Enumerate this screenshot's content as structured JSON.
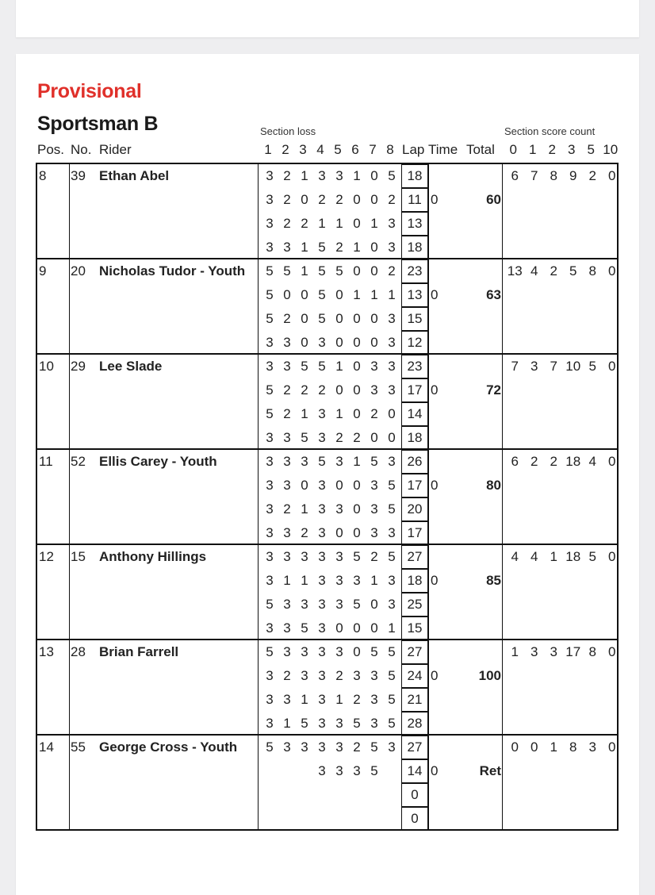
{
  "status": "Provisional",
  "class_name": "Sportsman B",
  "headers": {
    "section_loss": "Section loss",
    "section_score_count": "Section score count",
    "pos": "Pos.",
    "no": "No.",
    "rider": "Rider",
    "sections": [
      "1",
      "2",
      "3",
      "4",
      "5",
      "6",
      "7",
      "8"
    ],
    "lap": "Lap",
    "time": "Time",
    "total": "Total",
    "counts": [
      "0",
      "1",
      "2",
      "3",
      "5",
      "10"
    ]
  },
  "riders": [
    {
      "pos": "8",
      "no": "39",
      "name": "Ethan Abel",
      "time": "0",
      "total": "60",
      "laps": [
        {
          "sections": [
            "3",
            "2",
            "1",
            "3",
            "3",
            "1",
            "0",
            "5"
          ],
          "lap": "18"
        },
        {
          "sections": [
            "3",
            "2",
            "0",
            "2",
            "2",
            "0",
            "0",
            "2"
          ],
          "lap": "11"
        },
        {
          "sections": [
            "3",
            "2",
            "2",
            "1",
            "1",
            "0",
            "1",
            "3"
          ],
          "lap": "13"
        },
        {
          "sections": [
            "3",
            "3",
            "1",
            "5",
            "2",
            "1",
            "0",
            "3"
          ],
          "lap": "18"
        }
      ],
      "counts": [
        "6",
        "7",
        "8",
        "9",
        "2",
        "0"
      ]
    },
    {
      "pos": "9",
      "no": "20",
      "name": "Nicholas Tudor - Youth",
      "time": "0",
      "total": "63",
      "laps": [
        {
          "sections": [
            "5",
            "5",
            "1",
            "5",
            "5",
            "0",
            "0",
            "2"
          ],
          "lap": "23"
        },
        {
          "sections": [
            "5",
            "0",
            "0",
            "5",
            "0",
            "1",
            "1",
            "1"
          ],
          "lap": "13"
        },
        {
          "sections": [
            "5",
            "2",
            "0",
            "5",
            "0",
            "0",
            "0",
            "3"
          ],
          "lap": "15"
        },
        {
          "sections": [
            "3",
            "3",
            "0",
            "3",
            "0",
            "0",
            "0",
            "3"
          ],
          "lap": "12"
        }
      ],
      "counts": [
        "13",
        "4",
        "2",
        "5",
        "8",
        "0"
      ]
    },
    {
      "pos": "10",
      "no": "29",
      "name": "Lee Slade",
      "time": "0",
      "total": "72",
      "laps": [
        {
          "sections": [
            "3",
            "3",
            "5",
            "5",
            "1",
            "0",
            "3",
            "3"
          ],
          "lap": "23"
        },
        {
          "sections": [
            "5",
            "2",
            "2",
            "2",
            "0",
            "0",
            "3",
            "3"
          ],
          "lap": "17"
        },
        {
          "sections": [
            "5",
            "2",
            "1",
            "3",
            "1",
            "0",
            "2",
            "0"
          ],
          "lap": "14"
        },
        {
          "sections": [
            "3",
            "3",
            "5",
            "3",
            "2",
            "2",
            "0",
            "0"
          ],
          "lap": "18"
        }
      ],
      "counts": [
        "7",
        "3",
        "7",
        "10",
        "5",
        "0"
      ]
    },
    {
      "pos": "11",
      "no": "52",
      "name": "Ellis Carey - Youth",
      "time": "0",
      "total": "80",
      "laps": [
        {
          "sections": [
            "3",
            "3",
            "3",
            "5",
            "3",
            "1",
            "5",
            "3"
          ],
          "lap": "26"
        },
        {
          "sections": [
            "3",
            "3",
            "0",
            "3",
            "0",
            "0",
            "3",
            "5"
          ],
          "lap": "17"
        },
        {
          "sections": [
            "3",
            "2",
            "1",
            "3",
            "3",
            "0",
            "3",
            "5"
          ],
          "lap": "20"
        },
        {
          "sections": [
            "3",
            "3",
            "2",
            "3",
            "0",
            "0",
            "3",
            "3"
          ],
          "lap": "17"
        }
      ],
      "counts": [
        "6",
        "2",
        "2",
        "18",
        "4",
        "0"
      ]
    },
    {
      "pos": "12",
      "no": "15",
      "name": "Anthony Hillings",
      "time": "0",
      "total": "85",
      "laps": [
        {
          "sections": [
            "3",
            "3",
            "3",
            "3",
            "3",
            "5",
            "2",
            "5"
          ],
          "lap": "27"
        },
        {
          "sections": [
            "3",
            "1",
            "1",
            "3",
            "3",
            "3",
            "1",
            "3"
          ],
          "lap": "18"
        },
        {
          "sections": [
            "5",
            "3",
            "3",
            "3",
            "3",
            "5",
            "0",
            "3"
          ],
          "lap": "25"
        },
        {
          "sections": [
            "3",
            "3",
            "5",
            "3",
            "0",
            "0",
            "0",
            "1"
          ],
          "lap": "15"
        }
      ],
      "counts": [
        "4",
        "4",
        "1",
        "18",
        "5",
        "0"
      ]
    },
    {
      "pos": "13",
      "no": "28",
      "name": "Brian Farrell",
      "time": "0",
      "total": "100",
      "laps": [
        {
          "sections": [
            "5",
            "3",
            "3",
            "3",
            "3",
            "0",
            "5",
            "5"
          ],
          "lap": "27"
        },
        {
          "sections": [
            "3",
            "2",
            "3",
            "3",
            "2",
            "3",
            "3",
            "5"
          ],
          "lap": "24"
        },
        {
          "sections": [
            "3",
            "3",
            "1",
            "3",
            "1",
            "2",
            "3",
            "5"
          ],
          "lap": "21"
        },
        {
          "sections": [
            "3",
            "1",
            "5",
            "3",
            "3",
            "5",
            "3",
            "5"
          ],
          "lap": "28"
        }
      ],
      "counts": [
        "1",
        "3",
        "3",
        "17",
        "8",
        "0"
      ]
    },
    {
      "pos": "14",
      "no": "55",
      "name": "George Cross - Youth",
      "time": "0",
      "total": "Ret",
      "laps": [
        {
          "sections": [
            "5",
            "3",
            "3",
            "3",
            "3",
            "2",
            "5",
            "3"
          ],
          "lap": "27"
        },
        {
          "sections": [
            "",
            "",
            "",
            "3",
            "3",
            "3",
            "5",
            ""
          ],
          "lap": "14"
        },
        {
          "sections": [
            "",
            "",
            "",
            "",
            "",
            "",
            "",
            ""
          ],
          "lap": "0"
        },
        {
          "sections": [
            "",
            "",
            "",
            "",
            "",
            "",
            "",
            ""
          ],
          "lap": "0"
        }
      ],
      "counts": [
        "0",
        "0",
        "1",
        "8",
        "3",
        "0"
      ]
    }
  ]
}
